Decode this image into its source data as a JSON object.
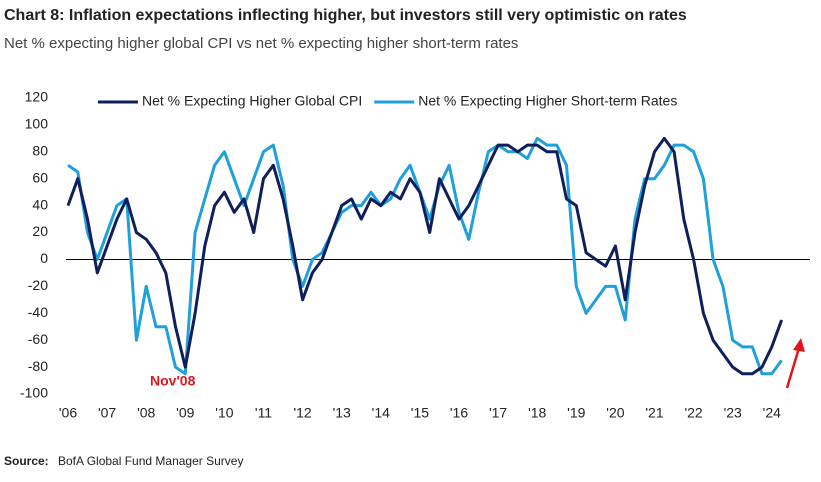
{
  "chart_data": {
    "type": "line",
    "title": "Chart 8: Inflation expectations inflecting higher, but investors still very optimistic on rates",
    "subtitle": "Net % expecting higher global CPI vs net % expecting higher short-term rates",
    "source_label": "Source:",
    "source_text": "BofA Global Fund Manager Survey",
    "annotations": [
      "Nov'08"
    ],
    "categories": [
      "'06",
      null,
      null,
      null,
      "'07",
      null,
      null,
      null,
      "'08",
      null,
      null,
      null,
      "'09",
      null,
      null,
      null,
      "'10",
      null,
      null,
      null,
      "'11",
      null,
      null,
      null,
      "'12",
      null,
      null,
      null,
      "'13",
      null,
      null,
      null,
      "'14",
      null,
      null,
      null,
      "'15",
      null,
      null,
      null,
      "'16",
      null,
      null,
      null,
      "'17",
      null,
      null,
      null,
      "'18",
      null,
      null,
      null,
      "'19",
      null,
      null,
      null,
      "'20",
      null,
      null,
      null,
      "'21",
      null,
      null,
      null,
      "'22",
      null,
      null,
      null,
      "'23",
      null,
      null,
      null,
      "'24",
      null
    ],
    "series": [
      {
        "name": "Net % Expecting Higher Global CPI",
        "color": "#0e1f5b",
        "values": [
          40,
          60,
          30,
          -10,
          10,
          30,
          45,
          20,
          15,
          5,
          -10,
          -50,
          -80,
          -40,
          10,
          40,
          50,
          35,
          45,
          20,
          60,
          70,
          45,
          10,
          -30,
          -10,
          0,
          20,
          40,
          45,
          30,
          45,
          40,
          50,
          45,
          60,
          50,
          20,
          60,
          45,
          30,
          40,
          55,
          70,
          85,
          85,
          80,
          85,
          85,
          80,
          80,
          45,
          40,
          5,
          0,
          -5,
          10,
          -30,
          20,
          55,
          80,
          90,
          80,
          30,
          0,
          -40,
          -60,
          -70,
          -80,
          -85,
          -85,
          -80,
          -65,
          -45
        ]
      },
      {
        "name": "Net % Expecting Higher Short-term Rates",
        "color": "#1fa0dc",
        "values": [
          70,
          65,
          20,
          0,
          20,
          40,
          45,
          -60,
          -20,
          -50,
          -50,
          -80,
          -85,
          20,
          45,
          70,
          80,
          60,
          40,
          60,
          80,
          85,
          55,
          0,
          -20,
          0,
          5,
          20,
          35,
          40,
          40,
          50,
          40,
          45,
          60,
          70,
          50,
          30,
          55,
          70,
          35,
          15,
          50,
          80,
          85,
          80,
          80,
          75,
          90,
          85,
          85,
          70,
          -20,
          -40,
          -30,
          -20,
          -20,
          -45,
          30,
          60,
          60,
          70,
          85,
          85,
          80,
          60,
          0,
          -20,
          -60,
          -65,
          -65,
          -85,
          -85,
          -75
        ]
      }
    ],
    "ylim": [
      -100,
      120
    ],
    "yticks": [
      -100,
      -80,
      -60,
      -40,
      -20,
      0,
      20,
      40,
      60,
      80,
      100,
      120
    ],
    "grid": false
  }
}
